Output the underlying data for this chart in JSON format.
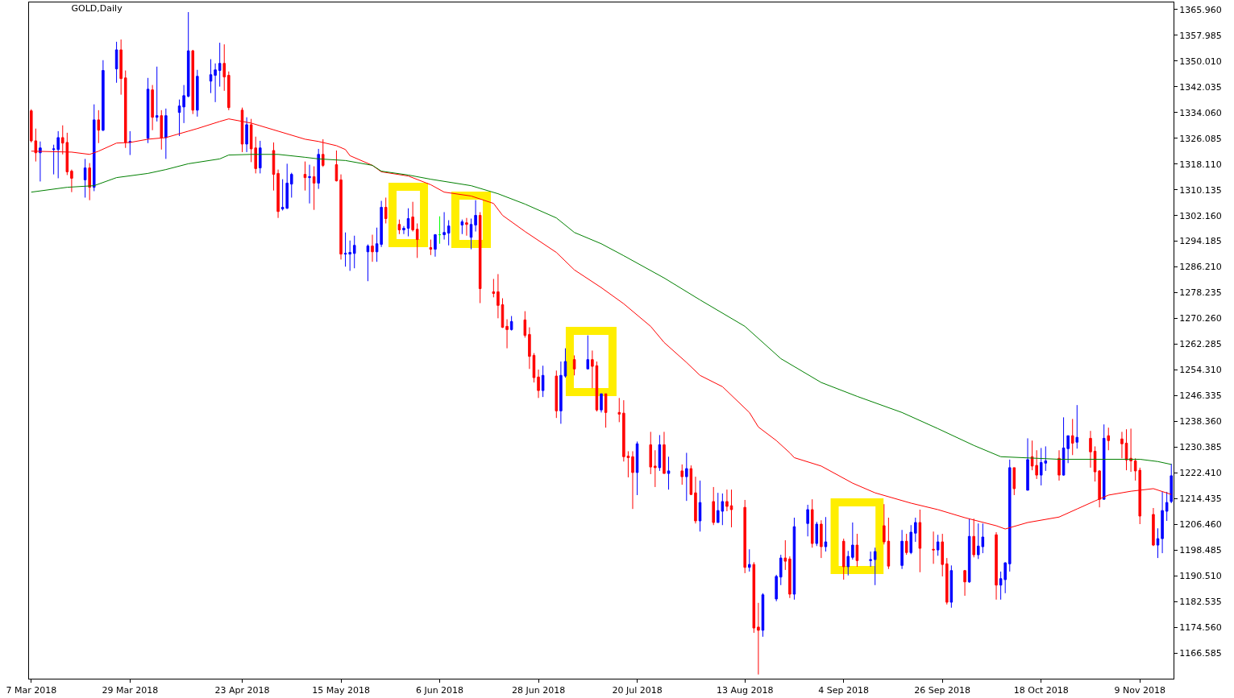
{
  "chart_data": {
    "type": "candlestick",
    "title": "GOLD,Daily",
    "x": [
      "2018-03-07",
      "2018-03-08",
      "2018-03-09",
      "2018-03-12",
      "2018-03-13",
      "2018-03-14",
      "2018-03-15",
      "2018-03-16",
      "2018-03-19",
      "2018-03-20",
      "2018-03-21",
      "2018-03-22",
      "2018-03-23",
      "2018-03-26",
      "2018-03-27",
      "2018-03-28",
      "2018-03-29",
      "2018-04-02",
      "2018-04-03",
      "2018-04-04",
      "2018-04-05",
      "2018-04-06",
      "2018-04-09",
      "2018-04-10",
      "2018-04-11",
      "2018-04-12",
      "2018-04-13",
      "2018-04-16",
      "2018-04-17",
      "2018-04-18",
      "2018-04-19",
      "2018-04-20",
      "2018-04-23",
      "2018-04-24",
      "2018-04-25",
      "2018-04-26",
      "2018-04-27",
      "2018-04-30",
      "2018-05-01",
      "2018-05-02",
      "2018-05-03",
      "2018-05-04",
      "2018-05-07",
      "2018-05-08",
      "2018-05-09",
      "2018-05-10",
      "2018-05-11",
      "2018-05-14",
      "2018-05-15",
      "2018-05-16",
      "2018-05-17",
      "2018-05-18",
      "2018-05-21",
      "2018-05-22",
      "2018-05-23",
      "2018-05-24",
      "2018-05-25",
      "2018-05-28",
      "2018-05-29",
      "2018-05-30",
      "2018-05-31",
      "2018-06-01",
      "2018-06-04",
      "2018-06-05",
      "2018-06-06",
      "2018-06-07",
      "2018-06-08",
      "2018-06-11",
      "2018-06-12",
      "2018-06-13",
      "2018-06-14",
      "2018-06-15",
      "2018-06-18",
      "2018-06-19",
      "2018-06-20",
      "2018-06-21",
      "2018-06-22",
      "2018-06-25",
      "2018-06-26",
      "2018-06-27",
      "2018-06-28",
      "2018-06-29",
      "2018-07-02",
      "2018-07-03",
      "2018-07-04",
      "2018-07-06",
      "2018-07-09",
      "2018-07-10",
      "2018-07-11",
      "2018-07-12",
      "2018-07-13",
      "2018-07-16",
      "2018-07-17",
      "2018-07-18",
      "2018-07-19",
      "2018-07-20",
      "2018-07-23",
      "2018-07-24",
      "2018-07-25",
      "2018-07-26",
      "2018-07-27",
      "2018-07-30",
      "2018-07-31",
      "2018-08-01",
      "2018-08-02",
      "2018-08-03",
      "2018-08-06",
      "2018-08-07",
      "2018-08-08",
      "2018-08-09",
      "2018-08-10",
      "2018-08-13",
      "2018-08-14",
      "2018-08-15",
      "2018-08-16",
      "2018-08-17",
      "2018-08-20",
      "2018-08-21",
      "2018-08-22",
      "2018-08-23",
      "2018-08-24",
      "2018-08-27",
      "2018-08-28",
      "2018-08-29",
      "2018-08-30",
      "2018-08-31",
      "2018-09-04",
      "2018-09-05",
      "2018-09-06",
      "2018-09-07",
      "2018-09-10",
      "2018-09-11",
      "2018-09-13",
      "2018-09-14",
      "2018-09-17",
      "2018-09-18",
      "2018-09-19",
      "2018-09-20",
      "2018-09-21",
      "2018-09-24",
      "2018-09-25",
      "2018-09-26",
      "2018-09-27",
      "2018-09-28",
      "2018-10-01",
      "2018-10-02",
      "2018-10-03",
      "2018-10-04",
      "2018-10-05",
      "2018-10-08",
      "2018-10-09",
      "2018-10-10",
      "2018-10-11",
      "2018-10-12",
      "2018-10-15",
      "2018-10-16",
      "2018-10-17",
      "2018-10-18",
      "2018-10-19",
      "2018-10-22",
      "2018-10-23",
      "2018-10-24",
      "2018-10-25",
      "2018-10-26",
      "2018-10-29",
      "2018-10-30",
      "2018-10-31",
      "2018-11-01",
      "2018-11-02",
      "2018-11-05",
      "2018-11-06",
      "2018-11-07",
      "2018-11-08",
      "2018-11-09",
      "2018-11-12",
      "2018-11-13",
      "2018-11-14",
      "2018-11-15",
      "2018-11-16"
    ],
    "ohlc": [
      [
        1334.6,
        1335.1,
        1324.8,
        1325.3
      ],
      [
        1325.3,
        1329.1,
        1318.9,
        1321.6
      ],
      [
        1321.6,
        1325.1,
        1312.7,
        1323.1
      ],
      [
        1322.6,
        1324.1,
        1314.9,
        1322.8
      ],
      [
        1322.6,
        1328.3,
        1313.7,
        1326.3
      ],
      [
        1326.3,
        1330.1,
        1321.1,
        1324.6
      ],
      [
        1324.8,
        1327.8,
        1314.7,
        1315.7
      ],
      [
        1315.9,
        1316.4,
        1309.4,
        1313.7
      ],
      [
        1313.2,
        1319.7,
        1307.7,
        1316.9
      ],
      [
        1316.9,
        1318.4,
        1306.9,
        1310.9
      ],
      [
        1310.9,
        1336.6,
        1309.7,
        1331.8
      ],
      [
        1331.8,
        1334.8,
        1324.6,
        1328.6
      ],
      [
        1328.6,
        1350.3,
        1328.3,
        1347.1
      ],
      [
        1347.6,
        1356.0,
        1343.3,
        1353.5
      ],
      [
        1353.5,
        1356.7,
        1339.6,
        1344.6
      ],
      [
        1344.8,
        1347.1,
        1323.1,
        1324.8
      ],
      [
        1324.8,
        1328.3,
        1320.9,
        1325.1
      ],
      [
        1326.1,
        1344.8,
        1324.6,
        1341.3
      ],
      [
        1341.1,
        1342.6,
        1328.6,
        1332.6
      ],
      [
        1332.6,
        1348.3,
        1331.3,
        1333.1
      ],
      [
        1333.1,
        1334.8,
        1322.6,
        1326.3
      ],
      [
        1326.3,
        1335.3,
        1319.7,
        1333.1
      ],
      [
        1334.1,
        1338.1,
        1326.8,
        1336.1
      ],
      [
        1335.8,
        1342.6,
        1330.8,
        1339.3
      ],
      [
        1339.1,
        1365.2,
        1338.8,
        1353.2
      ],
      [
        1353.2,
        1353.5,
        1333.6,
        1334.8
      ],
      [
        1334.8,
        1347.3,
        1332.8,
        1345.3
      ],
      [
        1343.8,
        1350.6,
        1340.1,
        1345.8
      ],
      [
        1345.6,
        1349.3,
        1337.3,
        1347.3
      ],
      [
        1347.1,
        1355.7,
        1342.1,
        1349.3
      ],
      [
        1349.3,
        1355.2,
        1340.8,
        1345.1
      ],
      [
        1345.6,
        1346.8,
        1334.8,
        1335.6
      ],
      [
        1334.8,
        1335.6,
        1321.8,
        1324.3
      ],
      [
        1324.3,
        1332.6,
        1321.8,
        1330.3
      ],
      [
        1330.3,
        1332.1,
        1318.7,
        1322.8
      ],
      [
        1323.1,
        1326.6,
        1315.2,
        1316.7
      ],
      [
        1316.9,
        1325.3,
        1315.2,
        1323.1
      ],
      [
        1322.3,
        1324.8,
        1309.9,
        1314.9
      ],
      [
        1315.2,
        1316.4,
        1301.4,
        1303.4
      ],
      [
        1304.2,
        1313.4,
        1303.7,
        1304.7
      ],
      [
        1304.4,
        1318.2,
        1304.2,
        1312.2
      ],
      [
        1311.9,
        1315.4,
        1307.7,
        1314.9
      ],
      [
        1314.9,
        1318.9,
        1309.9,
        1313.9
      ],
      [
        1313.9,
        1317.9,
        1305.9,
        1314.2
      ],
      [
        1314.2,
        1317.4,
        1303.9,
        1312.2
      ],
      [
        1312.2,
        1322.8,
        1310.4,
        1321.1
      ],
      [
        1321.1,
        1325.8,
        1317.2,
        1317.7
      ],
      [
        1317.9,
        1322.3,
        1312.7,
        1312.9
      ],
      [
        1313.2,
        1314.9,
        1288.5,
        1290.2
      ],
      [
        1290.2,
        1296.9,
        1286.3,
        1290.4
      ],
      [
        1290.2,
        1294.4,
        1285.0,
        1290.7
      ],
      [
        1290.4,
        1295.9,
        1285.8,
        1292.9
      ],
      [
        1290.9,
        1293.2,
        1281.8,
        1292.7
      ],
      [
        1292.7,
        1296.2,
        1287.8,
        1290.9
      ],
      [
        1290.9,
        1298.4,
        1287.8,
        1293.4
      ],
      [
        1293.2,
        1306.7,
        1292.4,
        1304.7
      ],
      [
        1304.7,
        1307.7,
        1299.7,
        1301.2
      ],
      [
        1299.4,
        1300.9,
        1296.4,
        1297.7
      ],
      [
        1297.7,
        1298.9,
        1296.4,
        1298.2
      ],
      [
        1298.2,
        1304.4,
        1295.7,
        1301.2
      ],
      [
        1301.7,
        1306.4,
        1297.2,
        1297.7
      ],
      [
        1297.9,
        1299.7,
        1289.0,
        1294.7
      ],
      [
        1292.2,
        1294.7,
        1289.9,
        1291.7
      ],
      [
        1291.7,
        1296.4,
        1289.4,
        1296.2
      ],
      [
        1296.2,
        1301.9,
        1293.4,
        1296.2
      ],
      [
        1296.2,
        1303.2,
        1294.7,
        1296.9
      ],
      [
        1296.7,
        1300.7,
        1292.9,
        1298.9
      ],
      [
        1299.2,
        1300.9,
        1296.4,
        1300.2
      ],
      [
        1299.9,
        1301.4,
        1295.9,
        1299.4
      ],
      [
        1295.4,
        1301.2,
        1291.7,
        1299.4
      ],
      [
        1299.2,
        1306.9,
        1297.2,
        1302.2
      ],
      [
        1302.2,
        1303.2,
        1275.0,
        1279.5
      ],
      [
        1278.5,
        1282.5,
        1276.8,
        1278.0
      ],
      [
        1278.5,
        1284.0,
        1270.3,
        1274.3
      ],
      [
        1274.5,
        1276.5,
        1267.3,
        1267.5
      ],
      [
        1267.8,
        1270.0,
        1261.0,
        1266.8
      ],
      [
        1266.8,
        1271.0,
        1266.5,
        1269.3
      ],
      [
        1269.8,
        1272.5,
        1264.3,
        1265.0
      ],
      [
        1265.3,
        1267.5,
        1254.6,
        1258.5
      ],
      [
        1258.8,
        1259.5,
        1250.4,
        1251.9
      ],
      [
        1252.1,
        1254.4,
        1245.6,
        1247.9
      ],
      [
        1247.9,
        1255.6,
        1245.9,
        1252.6
      ],
      [
        1252.4,
        1254.1,
        1239.4,
        1241.6
      ],
      [
        1241.6,
        1256.9,
        1237.6,
        1252.6
      ],
      [
        1252.4,
        1261.0,
        1251.9,
        1256.9
      ],
      [
        1257.5,
        1258.8,
        1252.6,
        1254.6
      ],
      [
        1254.6,
        1265.0,
        1254.6,
        1257.5
      ],
      [
        1257.5,
        1260.3,
        1248.6,
        1255.4
      ],
      [
        1255.6,
        1256.9,
        1241.4,
        1241.9
      ],
      [
        1241.9,
        1246.9,
        1241.1,
        1246.9
      ],
      [
        1246.9,
        1246.9,
        1236.4,
        1241.1
      ],
      [
        1241.1,
        1245.6,
        1238.1,
        1240.6
      ],
      [
        1240.9,
        1244.9,
        1225.9,
        1227.4
      ],
      [
        1227.6,
        1229.1,
        1221.0,
        1227.1
      ],
      [
        1227.4,
        1229.1,
        1211.2,
        1222.5
      ],
      [
        1222.5,
        1232.1,
        1215.5,
        1231.4
      ],
      [
        1231.1,
        1235.1,
        1222.0,
        1224.2
      ],
      [
        1224.5,
        1229.4,
        1218.0,
        1224.0
      ],
      [
        1224.0,
        1234.1,
        1223.0,
        1231.1
      ],
      [
        1231.1,
        1235.1,
        1222.2,
        1222.2
      ],
      [
        1222.2,
        1227.4,
        1217.2,
        1223.0
      ],
      [
        1223.0,
        1225.0,
        1218.7,
        1221.2
      ],
      [
        1221.2,
        1228.6,
        1213.7,
        1223.7
      ],
      [
        1223.7,
        1224.7,
        1215.5,
        1215.7
      ],
      [
        1216.2,
        1221.2,
        1206.7,
        1207.5
      ],
      [
        1207.5,
        1220.0,
        1204.2,
        1213.2
      ],
      [
        1213.5,
        1218.0,
        1206.2,
        1207.0
      ],
      [
        1207.0,
        1216.2,
        1207.0,
        1210.7
      ],
      [
        1210.5,
        1216.0,
        1206.2,
        1213.5
      ],
      [
        1213.5,
        1217.2,
        1210.5,
        1212.0
      ],
      [
        1212.2,
        1217.2,
        1205.5,
        1211.0
      ],
      [
        1211.7,
        1214.0,
        1191.3,
        1193.1
      ],
      [
        1193.1,
        1198.7,
        1191.8,
        1194.0
      ],
      [
        1194.0,
        1194.7,
        1172.8,
        1174.3
      ],
      [
        1174.6,
        1182.1,
        1159.9,
        1173.6
      ],
      [
        1173.6,
        1185.1,
        1171.6,
        1184.6
      ],
      [
        1183.3,
        1190.8,
        1182.6,
        1190.3
      ],
      [
        1190.1,
        1197.0,
        1187.6,
        1196.0
      ],
      [
        1196.0,
        1201.5,
        1192.3,
        1195.0
      ],
      [
        1195.7,
        1196.5,
        1183.6,
        1184.8
      ],
      [
        1184.8,
        1208.5,
        1183.1,
        1205.7
      ],
      [
        1206.7,
        1212.5,
        1202.7,
        1211.0
      ],
      [
        1211.0,
        1214.2,
        1199.2,
        1200.5
      ],
      [
        1200.5,
        1207.2,
        1199.7,
        1206.5
      ],
      [
        1206.5,
        1207.7,
        1196.0,
        1199.5
      ],
      [
        1199.5,
        1208.7,
        1198.0,
        1201.0
      ],
      [
        1201.2,
        1202.0,
        1189.3,
        1193.3
      ],
      [
        1193.3,
        1198.2,
        1190.6,
        1196.5
      ],
      [
        1196.2,
        1207.0,
        1195.5,
        1200.0
      ],
      [
        1200.0,
        1203.5,
        1193.3,
        1195.2
      ],
      [
        1195.2,
        1198.0,
        1193.3,
        1195.5
      ],
      [
        1195.5,
        1199.2,
        1187.6,
        1198.0
      ],
      [
        1206.0,
        1212.7,
        1200.2,
        1201.0
      ],
      [
        1201.2,
        1208.5,
        1192.6,
        1193.5
      ],
      [
        1193.7,
        1204.7,
        1192.6,
        1201.2
      ],
      [
        1201.2,
        1203.5,
        1197.0,
        1197.7
      ],
      [
        1197.7,
        1206.2,
        1197.2,
        1204.0
      ],
      [
        1203.7,
        1208.5,
        1201.0,
        1207.0
      ],
      [
        1207.0,
        1211.0,
        1191.6,
        1199.0
      ],
      [
        1198.7,
        1204.2,
        1194.2,
        1198.5
      ],
      [
        1198.5,
        1203.2,
        1196.7,
        1201.0
      ],
      [
        1201.0,
        1203.5,
        1190.3,
        1194.0
      ],
      [
        1194.2,
        1196.0,
        1181.6,
        1182.3
      ],
      [
        1182.3,
        1193.7,
        1180.6,
        1192.1
      ],
      [
        1192.1,
        1192.3,
        1184.3,
        1188.6
      ],
      [
        1188.6,
        1208.2,
        1188.3,
        1202.7
      ],
      [
        1202.7,
        1208.2,
        1196.2,
        1197.0
      ],
      [
        1197.0,
        1206.7,
        1195.7,
        1199.7
      ],
      [
        1199.5,
        1206.7,
        1197.5,
        1202.5
      ],
      [
        1203.2,
        1204.0,
        1183.1,
        1187.6
      ],
      [
        1187.6,
        1191.8,
        1183.1,
        1189.6
      ],
      [
        1189.3,
        1194.7,
        1185.1,
        1194.5
      ],
      [
        1194.2,
        1226.5,
        1191.8,
        1224.0
      ],
      [
        1224.0,
        1224.0,
        1215.5,
        1217.5
      ],
      [
        1217.0,
        1233.1,
        1217.0,
        1226.5
      ],
      [
        1227.4,
        1232.4,
        1223.2,
        1224.5
      ],
      [
        1224.7,
        1229.4,
        1220.5,
        1221.7
      ],
      [
        1221.7,
        1230.1,
        1218.5,
        1225.6
      ],
      [
        1225.4,
        1230.6,
        1223.0,
        1226.1
      ],
      [
        1226.9,
        1229.4,
        1220.0,
        1221.7
      ],
      [
        1221.7,
        1239.6,
        1221.5,
        1230.1
      ],
      [
        1229.9,
        1233.9,
        1225.4,
        1233.9
      ],
      [
        1233.9,
        1239.1,
        1227.9,
        1231.6
      ],
      [
        1231.9,
        1243.4,
        1229.9,
        1233.4
      ],
      [
        1233.1,
        1235.4,
        1224.0,
        1228.9
      ],
      [
        1229.1,
        1230.6,
        1219.7,
        1222.7
      ],
      [
        1223.0,
        1223.2,
        1211.7,
        1214.2
      ],
      [
        1214.2,
        1237.4,
        1214.2,
        1233.1
      ],
      [
        1233.9,
        1236.4,
        1229.4,
        1232.4
      ],
      [
        1232.9,
        1235.1,
        1226.9,
        1231.4
      ],
      [
        1231.6,
        1235.9,
        1223.2,
        1226.4
      ],
      [
        1226.9,
        1236.1,
        1222.7,
        1226.1
      ],
      [
        1226.1,
        1226.9,
        1220.0,
        1223.0
      ],
      [
        1223.2,
        1224.0,
        1206.5,
        1209.0
      ],
      [
        1209.5,
        1211.5,
        1199.7,
        1200.0
      ],
      [
        1200.0,
        1205.2,
        1196.0,
        1202.0
      ],
      [
        1202.0,
        1216.5,
        1197.5,
        1210.7
      ],
      [
        1210.5,
        1216.5,
        1207.5,
        1213.2
      ],
      [
        1213.5,
        1225.2,
        1213.0,
        1221.5
      ]
    ],
    "colors": [
      "#ff0000",
      "#ff0000",
      "#0000ff",
      "#0000ff",
      "#0000ff",
      "#ff0000",
      "#ff0000",
      "#ff0000",
      "#0000ff",
      "#ff0000",
      "#0000ff",
      "#ff0000",
      "#0000ff",
      "#0000ff",
      "#ff0000",
      "#ff0000",
      "#0000ff",
      "#0000ff",
      "#ff0000",
      "#0000ff",
      "#ff0000",
      "#0000ff",
      "#0000ff",
      "#0000ff",
      "#0000ff",
      "#ff0000",
      "#0000ff",
      "#0000ff",
      "#0000ff",
      "#0000ff",
      "#ff0000",
      "#ff0000",
      "#ff0000",
      "#0000ff",
      "#ff0000",
      "#ff0000",
      "#0000ff",
      "#ff0000",
      "#ff0000",
      "#0000ff",
      "#0000ff",
      "#0000ff",
      "#ff0000",
      "#0000ff",
      "#ff0000",
      "#0000ff",
      "#ff0000",
      "#ff0000",
      "#ff0000",
      "#0000ff",
      "#0000ff",
      "#0000ff",
      "#0000ff",
      "#ff0000",
      "#0000ff",
      "#0000ff",
      "#ff0000",
      "#ff0000",
      "#0000ff",
      "#0000ff",
      "#ff0000",
      "#ff0000",
      "#ff0000",
      "#0000ff",
      "#00ff00",
      "#0000ff",
      "#0000ff",
      "#0000ff",
      "#ff0000",
      "#0000ff",
      "#0000ff",
      "#ff0000",
      "#ff0000",
      "#ff0000",
      "#ff0000",
      "#ff0000",
      "#0000ff",
      "#ff0000",
      "#ff0000",
      "#ff0000",
      "#ff0000",
      "#0000ff",
      "#ff0000",
      "#0000ff",
      "#0000ff",
      "#ff0000",
      "#0000ff",
      "#ff0000",
      "#ff0000",
      "#0000ff",
      "#ff0000",
      "#ff0000",
      "#ff0000",
      "#ff0000",
      "#ff0000",
      "#0000ff",
      "#ff0000",
      "#ff0000",
      "#0000ff",
      "#ff0000",
      "#0000ff",
      "#ff0000",
      "#0000ff",
      "#ff0000",
      "#ff0000",
      "#0000ff",
      "#ff0000",
      "#0000ff",
      "#0000ff",
      "#ff0000",
      "#ff0000",
      "#ff0000",
      "#0000ff",
      "#ff0000",
      "#ff0000",
      "#0000ff",
      "#0000ff",
      "#0000ff",
      "#ff0000",
      "#ff0000",
      "#0000ff",
      "#0000ff",
      "#ff0000",
      "#0000ff",
      "#ff0000",
      "#0000ff",
      "#ff0000",
      "#0000ff",
      "#0000ff",
      "#ff0000",
      "#0000ff",
      "#0000ff",
      "#ff0000",
      "#ff0000",
      "#0000ff",
      "#ff0000",
      "#0000ff",
      "#0000ff",
      "#ff0000",
      "#ff0000",
      "#0000ff",
      "#ff0000",
      "#ff0000",
      "#0000ff",
      "#ff0000",
      "#0000ff",
      "#ff0000",
      "#0000ff",
      "#0000ff",
      "#ff0000",
      "#0000ff",
      "#0000ff",
      "#0000ff",
      "#ff0000",
      "#0000ff",
      "#ff0000",
      "#ff0000",
      "#0000ff",
      "#0000ff",
      "#ff0000",
      "#0000ff",
      "#0000ff",
      "#ff0000",
      "#0000ff",
      "#ff0000",
      "#ff0000",
      "#ff0000",
      "#0000ff",
      "#ff0000",
      "#ff0000",
      "#ff0000",
      "#ff0000",
      "#ff0000",
      "#ff0000",
      "#ff0000",
      "#0000ff",
      "#0000ff",
      "#0000ff",
      "#0000ff"
    ],
    "series": [
      {
        "type": "line",
        "color": "#ff0000",
        "x": [
          "2018-03-07",
          "2018-03-16",
          "2018-03-20",
          "2018-03-22",
          "2018-03-26",
          "2018-03-29",
          "2018-04-02",
          "2018-04-06",
          "2018-04-11",
          "2018-04-13",
          "2018-04-18",
          "2018-04-20",
          "2018-04-25",
          "2018-05-01",
          "2018-05-07",
          "2018-05-10",
          "2018-05-14",
          "2018-05-16",
          "2018-05-17",
          "2018-05-22",
          "2018-05-24",
          "2018-05-30",
          "2018-06-04",
          "2018-06-07",
          "2018-06-13",
          "2018-06-18",
          "2018-06-20",
          "2018-06-25",
          "2018-07-02",
          "2018-07-06",
          "2018-07-12",
          "2018-07-17",
          "2018-07-23",
          "2018-07-26",
          "2018-07-31",
          "2018-08-03",
          "2018-08-08",
          "2018-08-14",
          "2018-08-16",
          "2018-08-20",
          "2018-08-23",
          "2018-08-24",
          "2018-08-30",
          "2018-09-06",
          "2018-09-11",
          "2018-09-19",
          "2018-09-25",
          "2018-10-01",
          "2018-10-08",
          "2018-10-10",
          "2018-10-15",
          "2018-10-22",
          "2018-10-26",
          "2018-10-30",
          "2018-11-02",
          "2018-11-07",
          "2018-11-12",
          "2018-11-16"
        ],
        "values": [
          1322.1,
          1321.8,
          1321.1,
          1322.1,
          1324.6,
          1324.8,
          1325.8,
          1326.3,
          1328.3,
          1329.1,
          1331.3,
          1332.1,
          1330.8,
          1328.3,
          1325.8,
          1325.1,
          1323.8,
          1322.6,
          1320.7,
          1317.7,
          1315.7,
          1314.4,
          1311.7,
          1309.4,
          1308.2,
          1305.9,
          1302.2,
          1297.2,
          1290.7,
          1285.3,
          1279.8,
          1274.8,
          1267.8,
          1262.8,
          1256.6,
          1252.6,
          1249.1,
          1241.1,
          1236.6,
          1232.4,
          1228.6,
          1227.1,
          1224.5,
          1219.2,
          1216.2,
          1213.0,
          1211.0,
          1208.5,
          1206.0,
          1205.0,
          1207.0,
          1208.7,
          1211.2,
          1213.7,
          1215.5,
          1216.7,
          1217.5,
          1215.7
        ]
      },
      {
        "type": "line",
        "color": "#008000",
        "x": [
          "2018-03-07",
          "2018-03-15",
          "2018-03-21",
          "2018-03-26",
          "2018-04-02",
          "2018-04-06",
          "2018-04-11",
          "2018-04-18",
          "2018-04-20",
          "2018-04-25",
          "2018-05-01",
          "2018-05-07",
          "2018-05-10",
          "2018-05-16",
          "2018-05-22",
          "2018-05-24",
          "2018-05-30",
          "2018-06-04",
          "2018-06-13",
          "2018-06-19",
          "2018-06-25",
          "2018-07-02",
          "2018-07-06",
          "2018-07-12",
          "2018-07-17",
          "2018-07-26",
          "2018-08-03",
          "2018-08-13",
          "2018-08-21",
          "2018-08-30",
          "2018-09-07",
          "2018-09-17",
          "2018-09-25",
          "2018-10-03",
          "2018-10-09",
          "2018-10-22",
          "2018-10-30",
          "2018-11-09",
          "2018-11-13",
          "2018-11-16"
        ],
        "values": [
          1309.4,
          1310.9,
          1311.4,
          1313.9,
          1315.2,
          1316.4,
          1318.2,
          1319.7,
          1320.9,
          1321.1,
          1321.1,
          1320.2,
          1319.7,
          1319.2,
          1317.7,
          1315.9,
          1314.7,
          1313.4,
          1311.4,
          1308.9,
          1305.7,
          1301.4,
          1296.9,
          1293.4,
          1289.7,
          1282.8,
          1276.0,
          1267.8,
          1257.8,
          1250.4,
          1246.1,
          1241.1,
          1236.1,
          1230.9,
          1227.4,
          1226.6,
          1226.6,
          1226.6,
          1225.9,
          1225.0
        ]
      }
    ],
    "xlim": [
      "2018-03-07",
      "2018-11-16"
    ],
    "xticks": [
      {
        "value": "2018-03-07",
        "label": "7 Mar 2018"
      },
      {
        "value": "2018-03-29",
        "label": "29 Mar 2018"
      },
      {
        "value": "2018-04-23",
        "label": "23 Apr 2018"
      },
      {
        "value": "2018-05-15",
        "label": "15 May 2018"
      },
      {
        "value": "2018-06-06",
        "label": "6 Jun 2018"
      },
      {
        "value": "2018-06-28",
        "label": "28 Jun 2018"
      },
      {
        "value": "2018-07-20",
        "label": "20 Jul 2018"
      },
      {
        "value": "2018-08-13",
        "label": "13 Aug 2018"
      },
      {
        "value": "2018-09-04",
        "label": "4 Sep 2018"
      },
      {
        "value": "2018-09-26",
        "label": "26 Sep 2018"
      },
      {
        "value": "2018-10-18",
        "label": "18 Oct 2018"
      },
      {
        "value": "2018-11-09",
        "label": "9 Nov 2018"
      }
    ],
    "ylim": [
      1158.6,
      1368.2
    ],
    "yticks": [
      {
        "value": 1365.96,
        "label": "1365.960"
      },
      {
        "value": 1357.985,
        "label": "1357.985"
      },
      {
        "value": 1350.01,
        "label": "1350.010"
      },
      {
        "value": 1342.035,
        "label": "1342.035"
      },
      {
        "value": 1334.06,
        "label": "1334.060"
      },
      {
        "value": 1326.085,
        "label": "1326.085"
      },
      {
        "value": 1318.11,
        "label": "1318.110"
      },
      {
        "value": 1310.135,
        "label": "1310.135"
      },
      {
        "value": 1302.16,
        "label": "1302.160"
      },
      {
        "value": 1294.185,
        "label": "1294.185"
      },
      {
        "value": 1286.21,
        "label": "1286.210"
      },
      {
        "value": 1278.235,
        "label": "1278.235"
      },
      {
        "value": 1270.26,
        "label": "1270.260"
      },
      {
        "value": 1262.285,
        "label": "1262.285"
      },
      {
        "value": 1254.31,
        "label": "1254.310"
      },
      {
        "value": 1246.335,
        "label": "1246.335"
      },
      {
        "value": 1238.36,
        "label": "1238.360"
      },
      {
        "value": 1230.385,
        "label": "1230.385"
      },
      {
        "value": 1222.41,
        "label": "1222.410"
      },
      {
        "value": 1214.435,
        "label": "1214.435"
      },
      {
        "value": 1206.46,
        "label": "1206.460"
      },
      {
        "value": 1198.485,
        "label": "1198.485"
      },
      {
        "value": 1190.51,
        "label": "1190.510"
      },
      {
        "value": 1182.535,
        "label": "1182.535"
      },
      {
        "value": 1174.56,
        "label": "1174.560"
      },
      {
        "value": 1166.585,
        "label": "1166.585"
      }
    ]
  }
}
